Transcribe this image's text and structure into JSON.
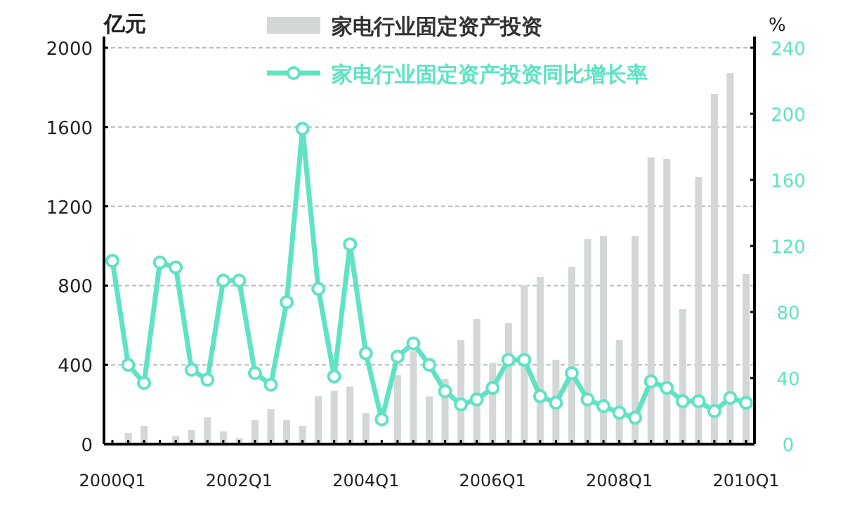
{
  "chart_data": {
    "type": "bar",
    "categories": [
      "2000Q1",
      null,
      null,
      null,
      null,
      null,
      null,
      null,
      "2002Q1",
      null,
      null,
      null,
      null,
      null,
      null,
      null,
      "2004Q1",
      null,
      null,
      null,
      null,
      null,
      null,
      null,
      "2006Q1",
      null,
      null,
      null,
      null,
      null,
      null,
      null,
      "2008Q1",
      null,
      null,
      null,
      null,
      null,
      null,
      null,
      "2010Q1"
    ],
    "ylabel": "亿元",
    "y2label": "%",
    "ylim": [
      0,
      2000
    ],
    "yticks": [
      0,
      400,
      800,
      1200,
      1600,
      2000
    ],
    "y2lim": [
      0,
      240
    ],
    "y2ticks": [
      0,
      40,
      80,
      120,
      160,
      200,
      240
    ],
    "grid": "y",
    "legend": "top",
    "marker": "circle",
    "series": [
      {
        "name": "家电行业固定资产投资",
        "color": "#d3d7d7",
        "values": [
          null,
          57,
          92,
          null,
          40,
          71,
          135,
          64,
          30,
          121,
          177,
          121,
          92,
          241,
          270,
          291,
          156,
          null,
          348,
          470,
          240,
          330,
          525,
          631,
          410,
          610,
          801,
          844,
          426,
          894,
          1035,
          1050,
          525,
          1050,
          1447,
          1440,
          681,
          1348,
          1766,
          1872,
          858
        ]
      },
      {
        "name": "家电行业固定资产投资同比增长率",
        "type": "line",
        "axis": "y2",
        "color": "#5fe3c4",
        "values": [
          111,
          48,
          37,
          110,
          107,
          45,
          39,
          99,
          99,
          43,
          36,
          86,
          191,
          94,
          41,
          121,
          55,
          15,
          53,
          61,
          48,
          32,
          24,
          27,
          34,
          51,
          51,
          29,
          25,
          43,
          27,
          23,
          19,
          16,
          38,
          34,
          26,
          26,
          20,
          28,
          25
        ]
      }
    ]
  }
}
